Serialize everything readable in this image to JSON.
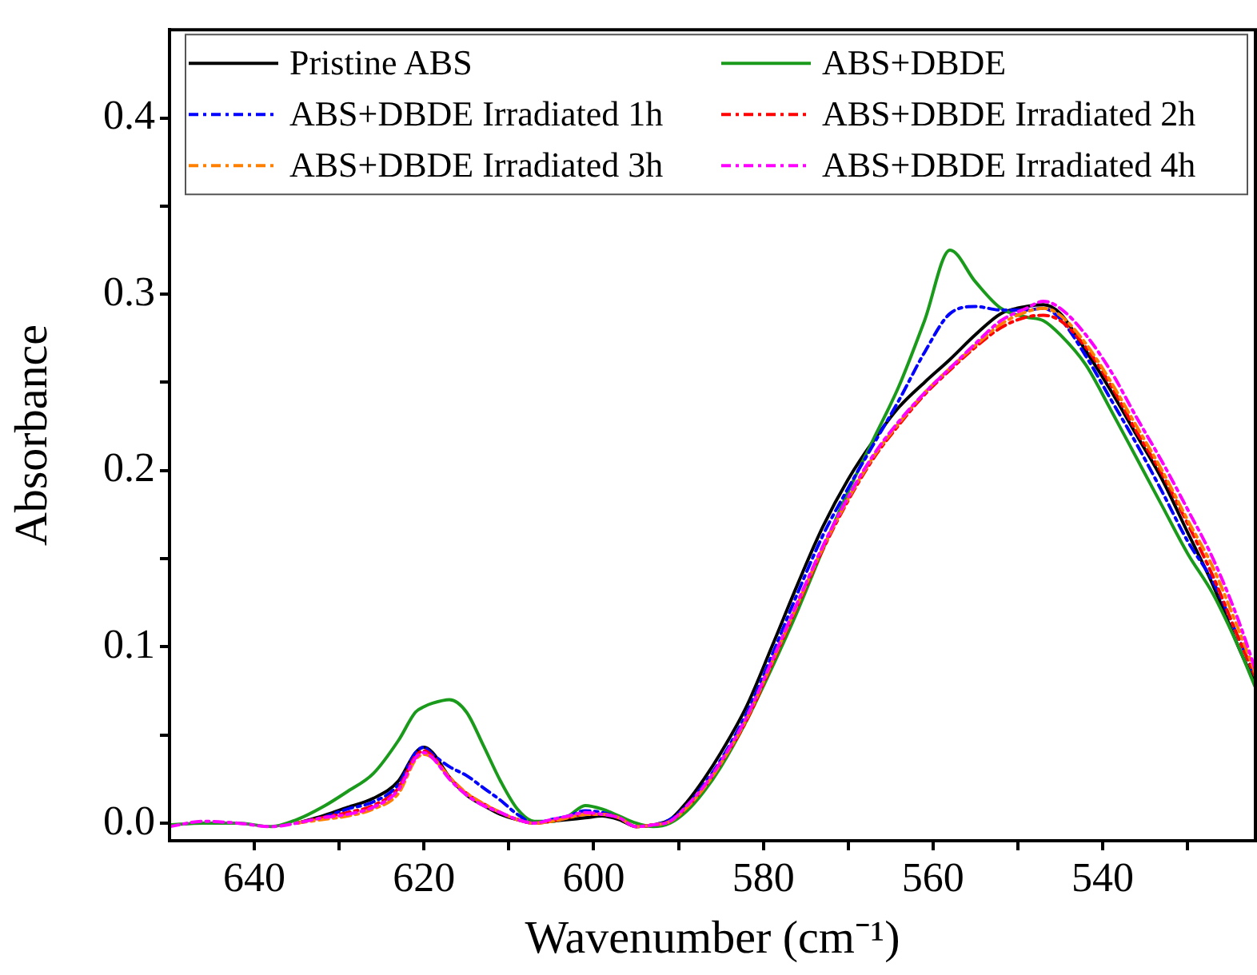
{
  "chart_data": {
    "type": "line",
    "xlabel": "Wavenumber (cm⁻¹)",
    "ylabel": "Absorbance",
    "x": [
      650,
      646,
      642,
      638,
      635,
      632,
      629,
      626,
      623,
      621,
      620,
      619,
      617,
      615,
      613,
      611,
      609,
      607,
      605,
      603,
      601,
      599,
      597,
      595,
      593,
      591,
      589,
      587,
      585,
      582,
      579,
      576,
      573,
      570,
      567,
      564,
      561,
      558,
      555,
      552,
      549,
      547,
      545,
      542,
      539,
      536,
      533,
      530,
      527,
      524,
      522
    ],
    "series": [
      {
        "name": "Pristine ABS",
        "color": "#000000",
        "line_style": "solid",
        "values": [
          null,
          null,
          null,
          null,
          0.0,
          0.004,
          0.009,
          0.014,
          0.024,
          0.04,
          0.043,
          0.04,
          0.026,
          0.016,
          0.01,
          0.005,
          0.002,
          0.0,
          0.001,
          0.002,
          0.003,
          0.004,
          0.002,
          -0.002,
          -0.001,
          0.002,
          0.012,
          0.025,
          0.04,
          0.066,
          0.1,
          0.135,
          0.168,
          0.195,
          0.217,
          0.236,
          0.25,
          0.263,
          0.277,
          0.289,
          0.293,
          0.294,
          0.289,
          0.268,
          0.245,
          0.22,
          0.195,
          0.165,
          0.135,
          0.1,
          0.079
        ]
      },
      {
        "name": "ABS+DBDE",
        "color": "#1a9a1a",
        "line_style": "solid",
        "values": [
          -0.001,
          0.0,
          0.0,
          -0.002,
          0.002,
          0.009,
          0.018,
          0.028,
          0.047,
          0.063,
          0.066,
          0.068,
          0.07,
          0.063,
          0.044,
          0.024,
          0.008,
          0.001,
          0.001,
          0.004,
          0.01,
          0.008,
          0.004,
          0.0,
          -0.002,
          0.0,
          0.007,
          0.018,
          0.032,
          0.058,
          0.088,
          0.12,
          0.155,
          0.188,
          0.218,
          0.248,
          0.285,
          0.325,
          0.307,
          0.292,
          0.287,
          0.285,
          0.277,
          0.26,
          0.234,
          0.207,
          0.18,
          0.153,
          0.13,
          0.1,
          0.077
        ]
      },
      {
        "name": "ABS+DBDE Irradiated 1h",
        "color": "#0000ff",
        "line_style": "dashdot",
        "values": [
          null,
          null,
          null,
          null,
          null,
          0.003,
          0.008,
          0.012,
          0.022,
          0.04,
          0.043,
          0.039,
          0.032,
          0.027,
          0.02,
          0.013,
          0.005,
          0.0,
          0.002,
          0.004,
          0.007,
          0.006,
          0.003,
          -0.002,
          -0.001,
          0.002,
          0.01,
          0.022,
          0.036,
          0.062,
          0.095,
          0.13,
          0.163,
          0.19,
          0.215,
          0.24,
          0.267,
          0.289,
          0.293,
          0.291,
          0.291,
          0.292,
          0.286,
          0.265,
          0.24,
          0.215,
          0.188,
          0.16,
          0.137,
          0.105,
          0.083
        ]
      },
      {
        "name": "ABS+DBDE Irradiated 2h",
        "color": "#ff0000",
        "line_style": "dashdot",
        "values": [
          null,
          null,
          null,
          null,
          0.0,
          0.003,
          0.006,
          0.01,
          0.02,
          0.038,
          0.041,
          0.038,
          0.026,
          0.017,
          0.011,
          0.006,
          0.002,
          0.0,
          0.001,
          0.003,
          0.005,
          0.005,
          0.003,
          -0.002,
          -0.001,
          0.001,
          0.009,
          0.02,
          0.034,
          0.058,
          0.09,
          0.123,
          0.155,
          0.183,
          0.207,
          0.226,
          0.243,
          0.257,
          0.27,
          0.281,
          0.287,
          0.288,
          0.285,
          0.27,
          0.248,
          0.222,
          0.198,
          0.17,
          0.14,
          0.105,
          0.083
        ]
      },
      {
        "name": "ABS+DBDE Irradiated 3h",
        "color": "#ff8000",
        "line_style": "dashdot",
        "values": [
          null,
          null,
          null,
          null,
          0.0,
          0.002,
          0.004,
          0.008,
          0.017,
          0.036,
          0.039,
          0.037,
          0.026,
          0.017,
          0.011,
          0.006,
          0.002,
          0.0,
          0.001,
          0.003,
          0.005,
          0.005,
          0.003,
          -0.002,
          -0.001,
          0.001,
          0.009,
          0.02,
          0.034,
          0.059,
          0.091,
          0.124,
          0.156,
          0.184,
          0.208,
          0.227,
          0.244,
          0.258,
          0.271,
          0.283,
          0.29,
          0.292,
          0.288,
          0.272,
          0.25,
          0.225,
          0.2,
          0.172,
          0.145,
          0.11,
          0.085
        ]
      },
      {
        "name": "ABS+DBDE Irradiated 4h",
        "color": "#ff00ff",
        "line_style": "dashdot",
        "values": [
          -0.002,
          0.001,
          0.0,
          -0.002,
          0.0,
          0.003,
          0.005,
          0.009,
          0.019,
          0.037,
          0.04,
          0.037,
          0.025,
          0.016,
          0.01,
          0.006,
          0.002,
          0.0,
          0.002,
          0.004,
          0.006,
          0.005,
          0.003,
          -0.002,
          -0.001,
          0.001,
          0.01,
          0.021,
          0.035,
          0.06,
          0.092,
          0.125,
          0.157,
          0.185,
          0.209,
          0.228,
          0.244,
          0.258,
          0.272,
          0.285,
          0.292,
          0.296,
          0.292,
          0.277,
          0.256,
          0.23,
          0.205,
          0.178,
          0.15,
          0.115,
          0.087
        ]
      }
    ],
    "xlim": [
      650,
      522
    ],
    "xticks": [
      640,
      {
        "value": 630,
        "label": null
      },
      620,
      {
        "value": 610,
        "label": null
      },
      600,
      {
        "value": 590,
        "label": null
      },
      580,
      {
        "value": 570,
        "label": null
      },
      560,
      {
        "value": 550,
        "label": null
      },
      540,
      {
        "value": 530,
        "label": null
      }
    ],
    "ylim": [
      -0.01,
      0.45
    ],
    "yticks": [
      {
        "value": 0.0,
        "label": "0.0"
      },
      {
        "value": 0.05,
        "label": null
      },
      {
        "value": 0.1,
        "label": "0.1"
      },
      {
        "value": 0.15,
        "label": null
      },
      {
        "value": 0.2,
        "label": "0.2"
      },
      {
        "value": 0.25,
        "label": null
      },
      {
        "value": 0.3,
        "label": "0.3"
      },
      {
        "value": 0.35,
        "label": null
      },
      {
        "value": 0.4,
        "label": "0.4"
      }
    ],
    "grid": false,
    "legend": "top",
    "marker": "none"
  }
}
